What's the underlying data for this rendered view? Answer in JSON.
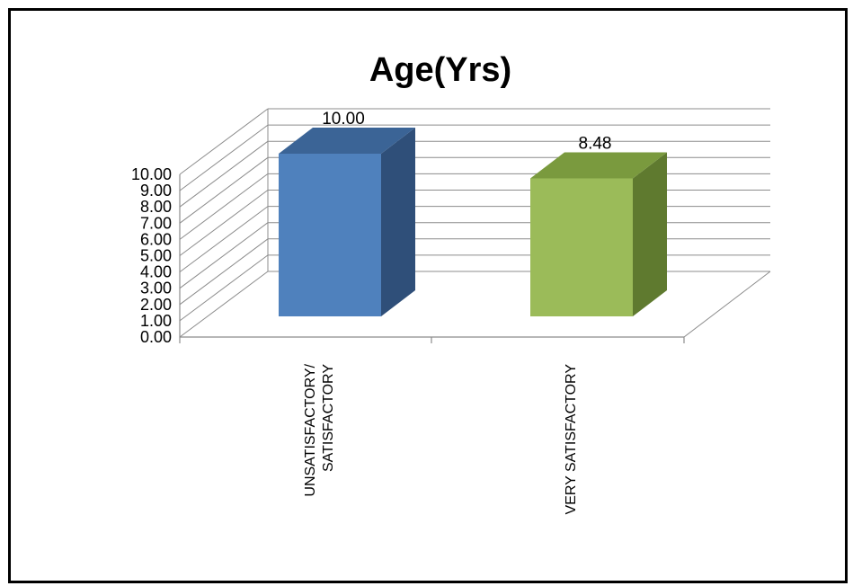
{
  "chart_data": {
    "type": "bar",
    "title": "Age(Yrs)",
    "categories": [
      "UNSATISFACTORY/ SATISFACTORY",
      "VERY SATISFACTORY"
    ],
    "category_lines": [
      [
        "UNSATISFACTORY/",
        "SATISFACTORY"
      ],
      [
        "VERY SATISFACTORY"
      ]
    ],
    "values": [
      10.0,
      8.48
    ],
    "data_labels": [
      "10.00",
      "8.48"
    ],
    "y_ticks": [
      "0.00",
      "1.00",
      "2.00",
      "3.00",
      "4.00",
      "5.00",
      "6.00",
      "7.00",
      "8.00",
      "9.00",
      "10.00"
    ],
    "ylim": [
      0,
      10
    ],
    "grid": true,
    "style": "3d-column",
    "legend": "none",
    "colors": [
      {
        "front": "#4f81bd",
        "top": "#3b6496",
        "side": "#2f4f79"
      },
      {
        "front": "#9bbb59",
        "top": "#7a9a3e",
        "side": "#5f7a2f"
      }
    ]
  }
}
